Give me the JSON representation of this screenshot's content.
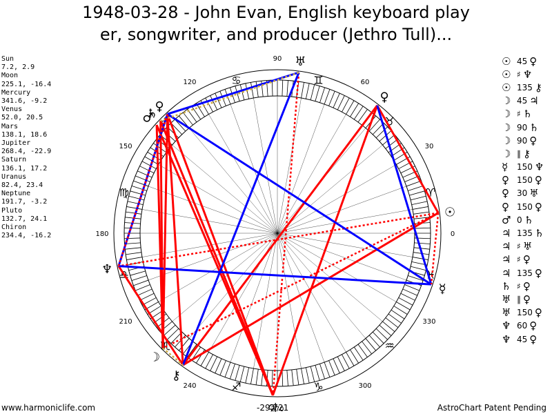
{
  "title": {
    "line1": "1948-03-28 - John Evan, English keyboard play",
    "line2": "er, songwriter, and producer (Jethro Tull)..."
  },
  "planet_positions": [
    {
      "name": "Sun",
      "value": "7.2, 2.9"
    },
    {
      "name": "Moon",
      "value": "225.1, -16.4"
    },
    {
      "name": "Mercury",
      "value": "341.6, -9.2"
    },
    {
      "name": "Venus",
      "value": "52.0, 20.5"
    },
    {
      "name": "Mars",
      "value": "138.1, 18.6"
    },
    {
      "name": "Jupiter",
      "value": "268.4, -22.9"
    },
    {
      "name": "Saturn",
      "value": "136.1, 17.2"
    },
    {
      "name": "Uranus",
      "value": "82.4, 23.4"
    },
    {
      "name": "Neptune",
      "value": "191.7, -3.2"
    },
    {
      "name": "Pluto",
      "value": "132.7, 24.1"
    },
    {
      "name": "Chiron",
      "value": "234.4, -16.2"
    }
  ],
  "aspect_list": [
    {
      "p1": "☉",
      "aspect": "45",
      "p2": "♀"
    },
    {
      "p1": "☉",
      "aspect": "♯",
      "p2": "♆"
    },
    {
      "p1": "☉",
      "aspect": "135",
      "p2": "⚷"
    },
    {
      "p1": "☽",
      "aspect": "45",
      "p2": "♃"
    },
    {
      "p1": "☽",
      "aspect": "♯",
      "p2": "♄"
    },
    {
      "p1": "☽",
      "aspect": "90",
      "p2": "♄"
    },
    {
      "p1": "☽",
      "aspect": "90",
      "p2": "♀"
    },
    {
      "p1": "☽",
      "aspect": "∥",
      "p2": "⚷"
    },
    {
      "p1": "☿",
      "aspect": "150",
      "p2": "♆"
    },
    {
      "p1": "♀",
      "aspect": "150",
      "p2": "♀"
    },
    {
      "p1": "♀",
      "aspect": "30",
      "p2": "♅"
    },
    {
      "p1": "♀",
      "aspect": "150",
      "p2": "♀"
    },
    {
      "p1": "♂",
      "aspect": "0",
      "p2": "♄"
    },
    {
      "p1": "♃",
      "aspect": "135",
      "p2": "♄"
    },
    {
      "p1": "♃",
      "aspect": "♯",
      "p2": "♅"
    },
    {
      "p1": "♃",
      "aspect": "♯",
      "p2": "♀"
    },
    {
      "p1": "♃",
      "aspect": "135",
      "p2": "♀"
    },
    {
      "p1": "♄",
      "aspect": "♯",
      "p2": "♀"
    },
    {
      "p1": "♅",
      "aspect": "∥",
      "p2": "♀"
    },
    {
      "p1": "♅",
      "aspect": "150",
      "p2": "♀"
    },
    {
      "p1": "♆",
      "aspect": "60",
      "p2": "♀"
    },
    {
      "p1": "♆",
      "aspect": "45",
      "p2": "♀"
    }
  ],
  "wheel": {
    "degree_labels": [
      "0",
      "30",
      "60",
      "90",
      "120",
      "150",
      "180",
      "210",
      "240",
      "270",
      "300",
      "330"
    ],
    "zodiac_signs": [
      "♈",
      "♉",
      "♊",
      "♋",
      "♌",
      "♍",
      "♎",
      "♏",
      "♐",
      "♑",
      "♒",
      "♓"
    ],
    "planets": [
      {
        "name": "Sun",
        "glyph": "☉",
        "lon": 7.2
      },
      {
        "name": "Moon",
        "glyph": "☽",
        "lon": 225.1
      },
      {
        "name": "Mercury",
        "glyph": "☿",
        "lon": 341.6
      },
      {
        "name": "Venus",
        "glyph": "♀",
        "lon": 52.0
      },
      {
        "name": "Mars",
        "glyph": "♂",
        "lon": 138.1
      },
      {
        "name": "Jupiter",
        "glyph": "♃",
        "lon": 268.4
      },
      {
        "name": "Saturn",
        "glyph": "♄",
        "lon": 136.1
      },
      {
        "name": "Uranus",
        "glyph": "♅",
        "lon": 82.4
      },
      {
        "name": "Neptune",
        "glyph": "♆",
        "lon": 191.7
      },
      {
        "name": "Pluto",
        "glyph": "♀",
        "lon": 132.7
      },
      {
        "name": "Chiron",
        "glyph": "⚷",
        "lon": 234.4
      }
    ],
    "aspect_lines": [
      {
        "a": "Sun",
        "b": "Moon",
        "color": "#ff0000",
        "style": "dotted"
      },
      {
        "a": "Sun",
        "b": "Neptune",
        "color": "#ff0000",
        "style": "dotted"
      },
      {
        "a": "Sun",
        "b": "Chiron",
        "color": "#ff0000",
        "style": "solid"
      },
      {
        "a": "Sun",
        "b": "Venus",
        "color": "#ff0000",
        "style": "solid"
      },
      {
        "a": "Venus",
        "b": "Chiron",
        "color": "#ff0000",
        "style": "solid"
      },
      {
        "a": "Venus",
        "b": "Jupiter",
        "color": "#ff0000",
        "style": "solid"
      },
      {
        "a": "Moon",
        "b": "Saturn",
        "color": "#ff0000",
        "style": "solid"
      },
      {
        "a": "Moon",
        "b": "Mars",
        "color": "#ff0000",
        "style": "solid"
      },
      {
        "a": "Moon",
        "b": "Pluto",
        "color": "#ff0000",
        "style": "solid"
      },
      {
        "a": "Jupiter",
        "b": "Saturn",
        "color": "#ff0000",
        "style": "solid"
      },
      {
        "a": "Jupiter",
        "b": "Mars",
        "color": "#ff0000",
        "style": "solid"
      },
      {
        "a": "Jupiter",
        "b": "Pluto",
        "color": "#ff0000",
        "style": "solid"
      },
      {
        "a": "Chiron",
        "b": "Neptune",
        "color": "#ff0000",
        "style": "solid"
      },
      {
        "a": "Chiron",
        "b": "Pluto",
        "color": "#ff0000",
        "style": "solid"
      },
      {
        "a": "Uranus",
        "b": "Jupiter",
        "color": "#ff0000",
        "style": "dotted"
      },
      {
        "a": "Mercury",
        "b": "Neptune",
        "color": "#0000ff",
        "style": "solid"
      },
      {
        "a": "Mercury",
        "b": "Venus",
        "color": "#0000ff",
        "style": "solid"
      },
      {
        "a": "Uranus",
        "b": "Chiron",
        "color": "#0000ff",
        "style": "solid"
      },
      {
        "a": "Uranus",
        "b": "Pluto",
        "color": "#0000ff",
        "style": "solid"
      },
      {
        "a": "Mercury",
        "b": "Pluto",
        "color": "#0000ff",
        "style": "solid"
      },
      {
        "a": "Neptune",
        "b": "Pluto",
        "color": "#0000ff",
        "style": "solid"
      },
      {
        "a": "Uranus",
        "b": "Saturn",
        "color": "#ccaa44",
        "style": "dotted"
      },
      {
        "a": "Moon",
        "b": "Chiron",
        "color": "#ccaa44",
        "style": "dotted"
      },
      {
        "a": "Neptune",
        "b": "Pluto",
        "color": "#ff0000",
        "style": "dotted"
      },
      {
        "a": "Moon",
        "b": "Pluto",
        "color": "#ff0000",
        "style": "dotted"
      },
      {
        "a": "Sun",
        "b": "Mercury",
        "color": "#ff0000",
        "style": "dotted"
      }
    ],
    "axis_value": "-29.721",
    "colors": {
      "hard_aspect": "#ff0000",
      "soft_aspect": "#0000ff",
      "minor_aspect": "#ccaa44",
      "zodiac_ring": "#000000"
    }
  },
  "footer": {
    "left": "www.harmoniclife.com",
    "center": "-29,721",
    "right": "AstroChart Patent Pending"
  }
}
